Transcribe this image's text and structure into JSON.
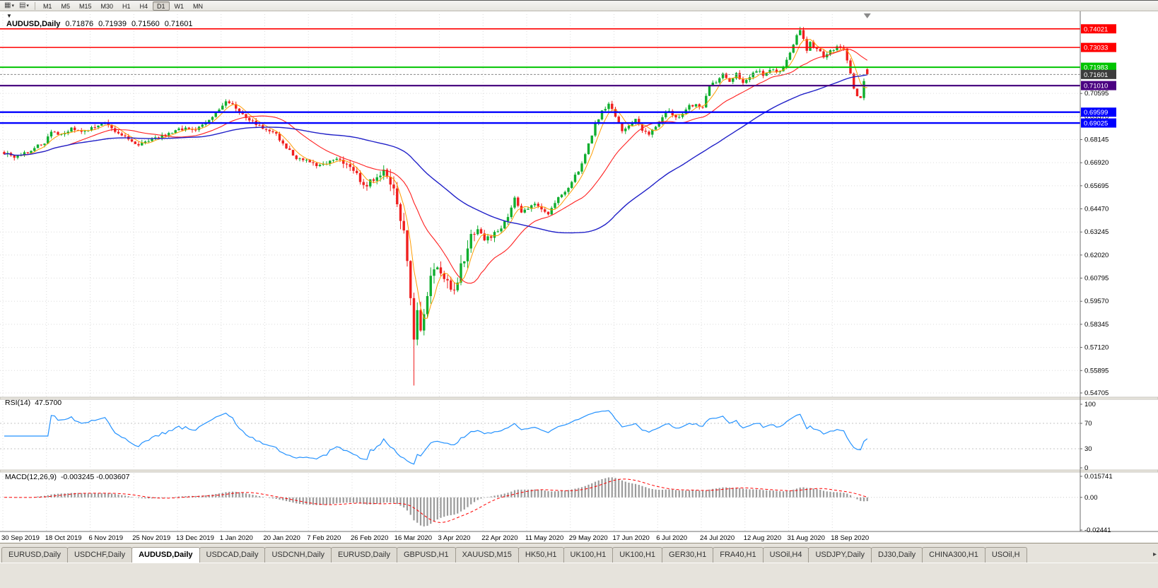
{
  "toolbar": {
    "icons": [
      {
        "glyph": "▦",
        "caret": "▾"
      },
      {
        "glyph": "▤",
        "caret": "▾"
      }
    ],
    "timeframes": [
      {
        "label": "M1",
        "active": false
      },
      {
        "label": "M5",
        "active": false
      },
      {
        "label": "M15",
        "active": false
      },
      {
        "label": "M30",
        "active": false
      },
      {
        "label": "H1",
        "active": false
      },
      {
        "label": "H4",
        "active": false
      },
      {
        "label": "D1",
        "active": true
      },
      {
        "label": "W1",
        "active": false
      },
      {
        "label": "MN",
        "active": false
      }
    ]
  },
  "chart_header": {
    "menu_arrow": "▼",
    "symbol": "AUDUSD,Daily",
    "open": "0.71876",
    "high": "0.71939",
    "low": "0.71560",
    "close": "0.71601"
  },
  "rsi_panel": {
    "label": "RSI(14)",
    "value": "47.5700",
    "ticks": [
      "100",
      "70",
      "30",
      "0"
    ],
    "levels": [
      70,
      30
    ],
    "line_color": "#2492ff"
  },
  "macd_panel": {
    "label": "MACD(12,26,9)",
    "value": "-0.003245 -0.003607",
    "ticks": [
      "0.015741",
      "0.00",
      "-0.02441"
    ],
    "bar_color": "#9a9a9a",
    "signal_color": "#ff0000"
  },
  "tabs": {
    "active_index": 2,
    "scroll_right_glyph": "▸",
    "items": [
      "EURUSD,Daily",
      "USDCHF,Daily",
      "AUDUSD,Daily",
      "USDCAD,Daily",
      "USDCNH,Daily",
      "EURUSD,Daily",
      "GBPUSD,H1",
      "XAUUSD,M15",
      "HK50,H1",
      "UK100,H1",
      "UK100,H1",
      "GER30,H1",
      "FRA40,H1",
      "USOil,H4",
      "USDJPY,Daily",
      "DJ30,Daily",
      "CHINA300,H1",
      "USOil,H"
    ]
  },
  "chart_data": {
    "type": "candlestick",
    "symbol": "AUDUSD",
    "timeframe": "Daily",
    "title": "AUDUSD,Daily 0.71876 0.71939 0.71560 0.71601",
    "last_ohlc": {
      "open": 0.71876,
      "high": 0.71939,
      "low": 0.7156,
      "close": 0.71601
    },
    "y_range": [
      0.5448,
      0.748
    ],
    "y_ticks": [
      0.70595,
      0.6937,
      0.68145,
      0.6692,
      0.65695,
      0.6447,
      0.63245,
      0.6202,
      0.60795,
      0.5957,
      0.58345,
      0.5712,
      0.55895,
      0.54705
    ],
    "x_labels": [
      "30 Sep 2019",
      "18 Oct 2019",
      "6 Nov 2019",
      "25 Nov 2019",
      "13 Dec 2019",
      "1 Jan 2020",
      "20 Jan 2020",
      "7 Feb 2020",
      "26 Feb 2020",
      "16 Mar 2020",
      "3 Apr 2020",
      "22 Apr 2020",
      "11 May 2020",
      "29 May 2020",
      "17 Jun 2020",
      "6 Jul 2020",
      "24 Jul 2020",
      "12 Aug 2020",
      "31 Aug 2020",
      "18 Sep 2020"
    ],
    "bars_per_label": 13,
    "bar_count": 258,
    "grid_color": "#dcdcdc",
    "candle_colors": {
      "up": "#0fae2e",
      "down": "#f01f1f"
    },
    "close_anchors": [
      [
        0,
        0.6745
      ],
      [
        3,
        0.672
      ],
      [
        6,
        0.6742
      ],
      [
        9,
        0.677
      ],
      [
        12,
        0.68
      ],
      [
        14,
        0.6855
      ],
      [
        17,
        0.684
      ],
      [
        20,
        0.687
      ],
      [
        23,
        0.685
      ],
      [
        27,
        0.6885
      ],
      [
        30,
        0.69
      ],
      [
        33,
        0.6855
      ],
      [
        36,
        0.6825
      ],
      [
        40,
        0.679
      ],
      [
        43,
        0.68
      ],
      [
        46,
        0.683
      ],
      [
        50,
        0.685
      ],
      [
        54,
        0.688
      ],
      [
        57,
        0.686
      ],
      [
        60,
        0.6905
      ],
      [
        63,
        0.695
      ],
      [
        66,
        0.7022
      ],
      [
        69,
        0.6985
      ],
      [
        72,
        0.693
      ],
      [
        75,
        0.69
      ],
      [
        78,
        0.6865
      ],
      [
        81,
        0.684
      ],
      [
        84,
        0.677
      ],
      [
        87,
        0.672
      ],
      [
        90,
        0.67
      ],
      [
        93,
        0.6675
      ],
      [
        96,
        0.669
      ],
      [
        99,
        0.672
      ],
      [
        102,
        0.6685
      ],
      [
        105,
        0.664
      ],
      [
        107,
        0.656
      ],
      [
        109,
        0.659
      ],
      [
        111,
        0.6625
      ],
      [
        113,
        0.6645
      ],
      [
        115,
        0.6585
      ],
      [
        117,
        0.648
      ],
      [
        119,
        0.631
      ],
      [
        120,
        0.618
      ],
      [
        121,
        0.6
      ],
      [
        122,
        0.5765
      ],
      [
        123,
        0.593
      ],
      [
        124,
        0.581
      ],
      [
        125,
        0.589
      ],
      [
        126,
        0.597
      ],
      [
        127,
        0.608
      ],
      [
        129,
        0.614
      ],
      [
        131,
        0.61
      ],
      [
        133,
        0.5995
      ],
      [
        135,
        0.6075
      ],
      [
        137,
        0.619
      ],
      [
        139,
        0.633
      ],
      [
        141,
        0.6345
      ],
      [
        143,
        0.629
      ],
      [
        145,
        0.63
      ],
      [
        147,
        0.633
      ],
      [
        149,
        0.6375
      ],
      [
        151,
        0.646
      ],
      [
        152,
        0.651
      ],
      [
        154,
        0.642
      ],
      [
        156,
        0.645
      ],
      [
        158,
        0.6475
      ],
      [
        160,
        0.645
      ],
      [
        162,
        0.6425
      ],
      [
        164,
        0.6475
      ],
      [
        166,
        0.653
      ],
      [
        168,
        0.655
      ],
      [
        170,
        0.6625
      ],
      [
        172,
        0.668
      ],
      [
        174,
        0.6785
      ],
      [
        176,
        0.6895
      ],
      [
        178,
        0.6965
      ],
      [
        180,
        0.7005
      ],
      [
        182,
        0.6935
      ],
      [
        184,
        0.686
      ],
      [
        186,
        0.6885
      ],
      [
        188,
        0.6925
      ],
      [
        190,
        0.6865
      ],
      [
        192,
        0.6845
      ],
      [
        194,
        0.6875
      ],
      [
        196,
        0.6935
      ],
      [
        198,
        0.697
      ],
      [
        200,
        0.693
      ],
      [
        202,
        0.6955
      ],
      [
        204,
        0.699
      ],
      [
        206,
        0.7005
      ],
      [
        208,
        0.6985
      ],
      [
        210,
        0.71
      ],
      [
        212,
        0.7125
      ],
      [
        214,
        0.7155
      ],
      [
        216,
        0.7125
      ],
      [
        218,
        0.716
      ],
      [
        220,
        0.711
      ],
      [
        222,
        0.7145
      ],
      [
        224,
        0.718
      ],
      [
        226,
        0.716
      ],
      [
        228,
        0.7185
      ],
      [
        230,
        0.717
      ],
      [
        232,
        0.7195
      ],
      [
        234,
        0.7275
      ],
      [
        236,
        0.737
      ],
      [
        237,
        0.7395
      ],
      [
        238,
        0.7345
      ],
      [
        239,
        0.7295
      ],
      [
        240,
        0.7325
      ],
      [
        242,
        0.729
      ],
      [
        244,
        0.726
      ],
      [
        246,
        0.729
      ],
      [
        248,
        0.7305
      ],
      [
        250,
        0.729
      ],
      [
        251,
        0.7225
      ],
      [
        252,
        0.7165
      ],
      [
        253,
        0.7085
      ],
      [
        254,
        0.7045
      ],
      [
        255,
        0.7035
      ],
      [
        256,
        0.7125
      ],
      [
        257,
        0.71601
      ]
    ],
    "extreme_low": {
      "index": 122,
      "price": 0.551
    },
    "extreme_high": {
      "index": 237,
      "price": 0.7413
    },
    "hlines": [
      {
        "price": 0.74021,
        "color": "#ff0000",
        "width": 1.6
      },
      {
        "price": 0.73033,
        "color": "#ff0000",
        "width": 1.6
      },
      {
        "price": 0.71983,
        "color": "#00c400",
        "width": 2
      },
      {
        "price": 0.7101,
        "color": "#4b0082",
        "width": 2.2
      },
      {
        "price": 0.69599,
        "color": "#0000ff",
        "width": 2.4
      },
      {
        "price": 0.69025,
        "color": "#0000ff",
        "width": 2.4
      }
    ],
    "current_price": {
      "price": 0.71601,
      "tag_color": "#3c3c3c",
      "line_color": "#8a8a8a"
    },
    "moving_averages": [
      {
        "period": 5,
        "color": "#ff9c00",
        "width": 1
      },
      {
        "period": 20,
        "color": "#ff2020",
        "width": 1.1
      },
      {
        "period": 60,
        "color": "#2020c8",
        "width": 1.4
      }
    ],
    "rsi": {
      "period": 14,
      "current": 47.57,
      "range": [
        0,
        100
      ],
      "levels": [
        30,
        70
      ]
    },
    "macd": {
      "fast": 12,
      "slow": 26,
      "signal": 9,
      "current_macd": -0.003245,
      "current_signal": -0.003607,
      "range": [
        -0.02441,
        0.015741
      ]
    }
  }
}
